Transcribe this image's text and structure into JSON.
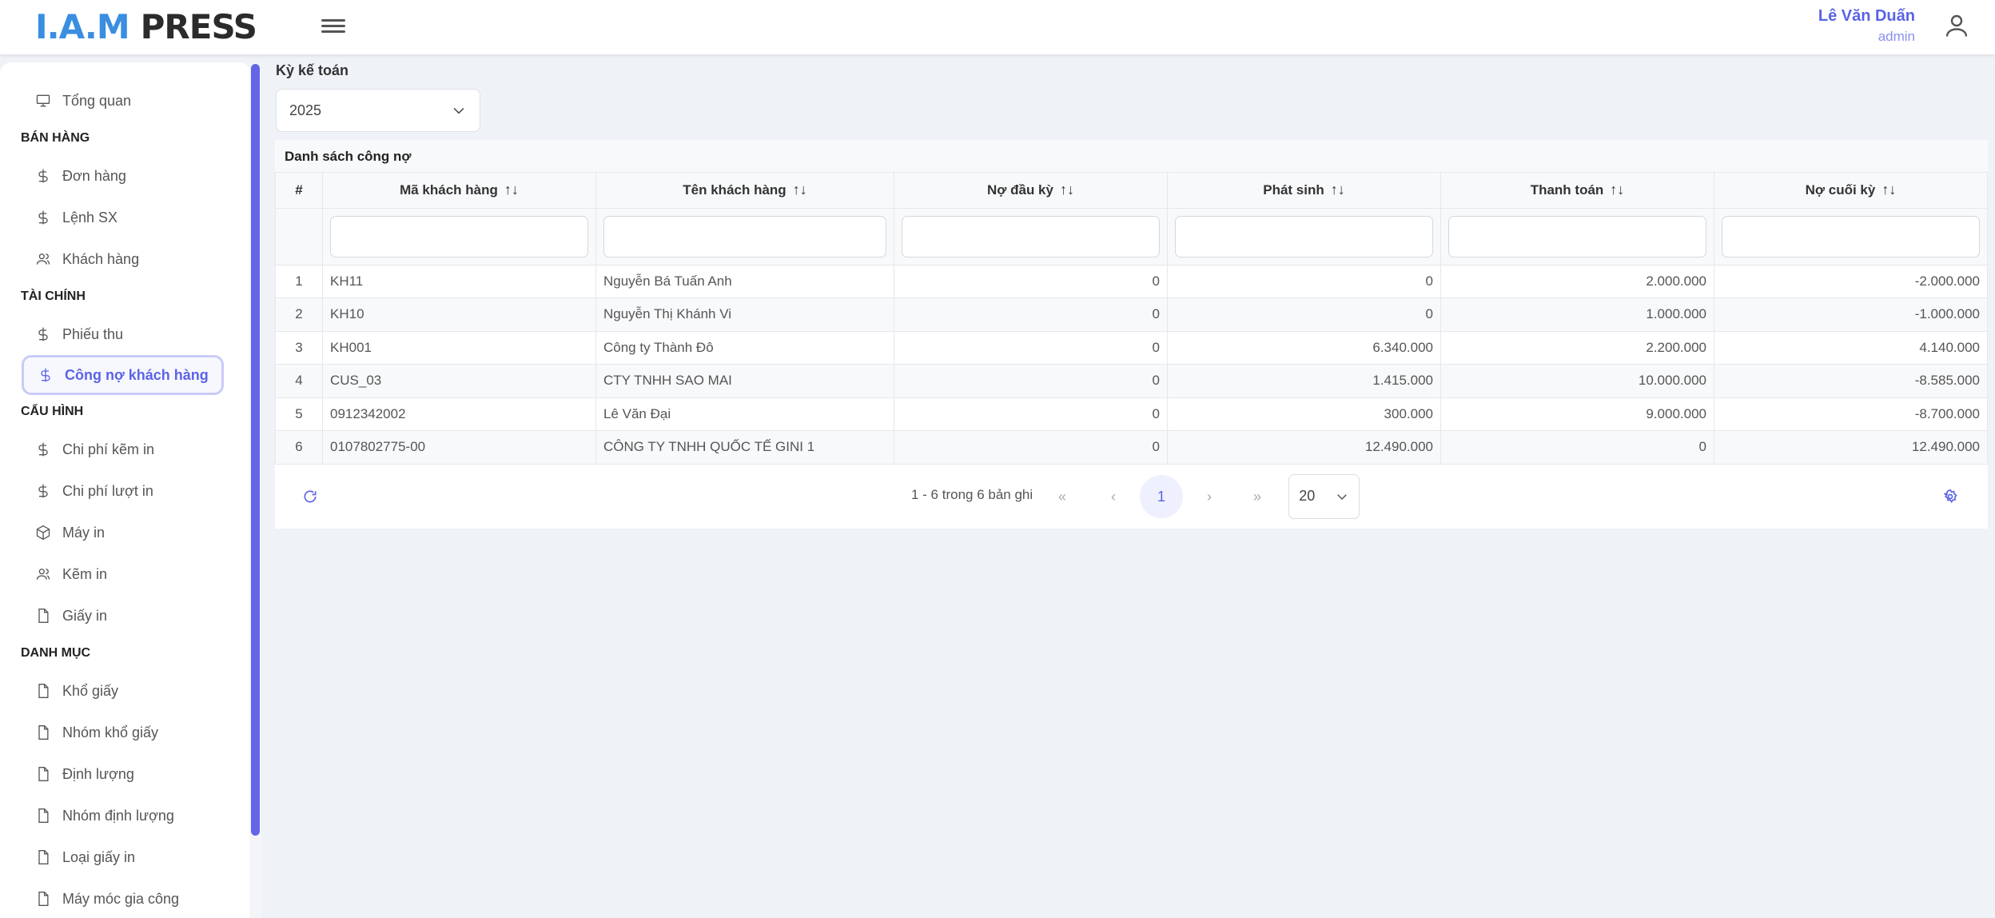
{
  "header": {
    "logo_left": "I.A.M",
    "logo_right": "PRESS",
    "user_name": "Lê Văn Duấn",
    "user_role": "admin"
  },
  "sidebar": [
    {
      "type": "item",
      "label": "Tổng quan",
      "icon": "monitor"
    },
    {
      "type": "section",
      "label": "BÁN HÀNG"
    },
    {
      "type": "item",
      "label": "Đơn hàng",
      "icon": "dollar"
    },
    {
      "type": "item",
      "label": "Lệnh SX",
      "icon": "dollar"
    },
    {
      "type": "item",
      "label": "Khách hàng",
      "icon": "users"
    },
    {
      "type": "section",
      "label": "TÀI CHÍNH"
    },
    {
      "type": "item",
      "label": "Phiếu thu",
      "icon": "dollar"
    },
    {
      "type": "item",
      "label": "Công nợ khách hàng",
      "icon": "dollar",
      "active": true
    },
    {
      "type": "section",
      "label": "CẤU HÌNH"
    },
    {
      "type": "item",
      "label": "Chi phí kẽm in",
      "icon": "dollar"
    },
    {
      "type": "item",
      "label": "Chi phí lượt in",
      "icon": "dollar"
    },
    {
      "type": "item",
      "label": "Máy in",
      "icon": "box"
    },
    {
      "type": "item",
      "label": "Kẽm in",
      "icon": "users"
    },
    {
      "type": "item",
      "label": "Giấy in",
      "icon": "file"
    },
    {
      "type": "section",
      "label": "DANH MỤC"
    },
    {
      "type": "item",
      "label": "Khổ giấy",
      "icon": "file"
    },
    {
      "type": "item",
      "label": "Nhóm khổ giấy",
      "icon": "file"
    },
    {
      "type": "item",
      "label": "Định lượng",
      "icon": "file"
    },
    {
      "type": "item",
      "label": "Nhóm định lượng",
      "icon": "file"
    },
    {
      "type": "item",
      "label": "Loại giấy in",
      "icon": "file"
    },
    {
      "type": "item",
      "label": "Máy móc gia công",
      "icon": "file"
    }
  ],
  "filter": {
    "label": "Kỳ kế toán",
    "value": "2025"
  },
  "table": {
    "title": "Danh sách công nợ",
    "columns": [
      "#",
      "Mã khách hàng",
      "Tên khách hàng",
      "Nợ đầu kỳ",
      "Phát sinh",
      "Thanh toán",
      "Nợ cuối kỳ"
    ],
    "rows": [
      [
        "1",
        "KH11",
        "Nguyễn Bá Tuấn Anh",
        "0",
        "0",
        "2.000.000",
        "-2.000.000"
      ],
      [
        "2",
        "KH10",
        "Nguyễn Thị Khánh Vi",
        "0",
        "0",
        "1.000.000",
        "-1.000.000"
      ],
      [
        "3",
        "KH001",
        "Công ty Thành Đô",
        "0",
        "6.340.000",
        "2.200.000",
        "4.140.000"
      ],
      [
        "4",
        "CUS_03",
        "CTY TNHH SAO MAI",
        "0",
        "1.415.000",
        "10.000.000",
        "-8.585.000"
      ],
      [
        "5",
        "0912342002",
        "Lê Văn Đại",
        "0",
        "300.000",
        "9.000.000",
        "-8.700.000"
      ],
      [
        "6",
        "0107802775-00",
        "CÔNG TY TNHH QUỐC TẾ GINI 1",
        "0",
        "12.490.000",
        "0",
        "12.490.000"
      ]
    ]
  },
  "pagination": {
    "info": "1 - 6 trong 6 bản ghi",
    "first": "«",
    "prev": "‹",
    "page": "1",
    "next": "›",
    "last": "»",
    "page_size": "20"
  },
  "colors": {
    "accent": "#5b63e6",
    "logo_blue": "#3a8ee0"
  }
}
